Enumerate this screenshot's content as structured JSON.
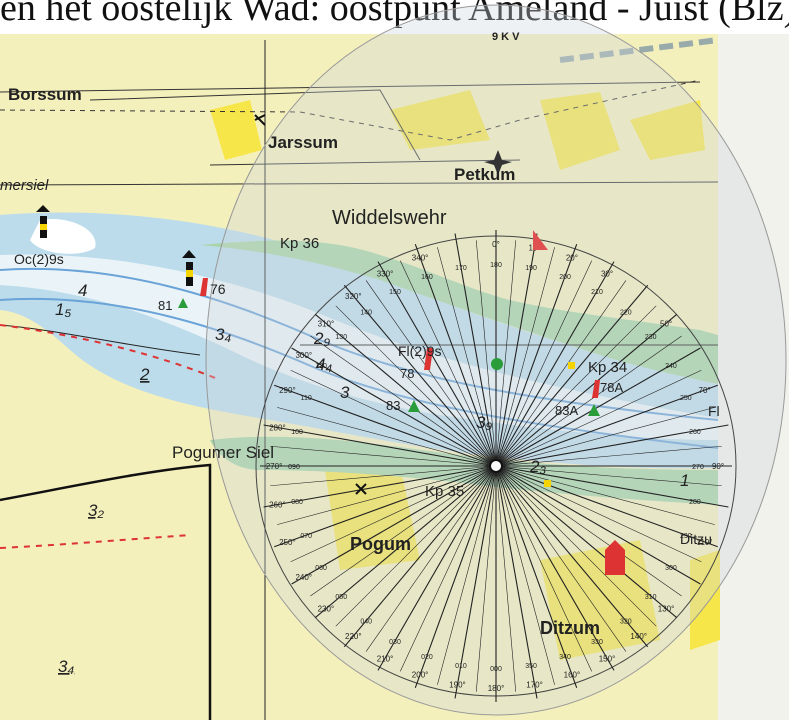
{
  "caption": "en het oostelijk Wad: oostpunt Ameland - Juist (Blz).",
  "map": {
    "places": [
      {
        "id": "borssum",
        "name": "Borssum"
      },
      {
        "id": "jarssum",
        "name": "Jarssum"
      },
      {
        "id": "petkum",
        "name": "Petkum"
      },
      {
        "id": "widdelswehr",
        "name": "Widdelswehr"
      },
      {
        "id": "pogumer-siel",
        "name": "Pogumer Siel"
      },
      {
        "id": "pogum",
        "name": "Pogum"
      },
      {
        "id": "ditzum",
        "name": "Ditzum"
      },
      {
        "id": "ditzum-right",
        "name": "Ditzu"
      },
      {
        "id": "mersiel",
        "name": "mersiel"
      }
    ],
    "kilometer_posts": [
      "Kp 36",
      "Kp 34",
      "Kp 35"
    ],
    "lights": [
      "Oc(2)9s",
      "Fl(2)9s",
      "Fl"
    ],
    "buoys": [
      "76",
      "81",
      "78",
      "83",
      "83A",
      "78A"
    ],
    "depths": [
      {
        "id": "d4a",
        "text": "4"
      },
      {
        "id": "d15",
        "text": "1₅"
      },
      {
        "id": "d34a",
        "text": "3₄"
      },
      {
        "id": "d2",
        "text": "2"
      },
      {
        "id": "d29",
        "text": "2₉"
      },
      {
        "id": "d44",
        "text": "4₄"
      },
      {
        "id": "d3",
        "text": "3"
      },
      {
        "id": "d39",
        "text": "3₉"
      },
      {
        "id": "d23",
        "text": "2₃"
      },
      {
        "id": "d1",
        "text": "1"
      },
      {
        "id": "d32",
        "text": "3₂"
      },
      {
        "id": "d34b",
        "text": "3₄"
      }
    ],
    "protractor": {
      "label": "9 K V",
      "degree_labels": [
        "0°",
        "10°",
        "20°",
        "30°",
        "50°",
        "70°",
        "90°",
        "110°",
        "130°",
        "140°",
        "150°",
        "160°",
        "170°",
        "180°",
        "190°",
        "200°",
        "210°",
        "220°",
        "230°",
        "240°",
        "250°",
        "260°",
        "270°",
        "280°",
        "290°",
        "300°",
        "310°",
        "320°",
        "330°",
        "340°"
      ],
      "inner_labels": [
        "180",
        "190",
        "200",
        "210",
        "220",
        "230",
        "240",
        "250",
        "260",
        "270",
        "280",
        "290",
        "300",
        "310",
        "320",
        "330",
        "340",
        "350",
        "000",
        "010",
        "020",
        "030",
        "040",
        "050",
        "060",
        "070",
        "080",
        "090",
        "100",
        "110",
        "120",
        "130",
        "140",
        "150",
        "160",
        "170"
      ]
    }
  },
  "colors": {
    "land": "#f4f0bc",
    "built_up": "#f7e64a",
    "shallow": "#bcdcec",
    "channel": "#eaf4f8",
    "marsh": "#a8d5a6",
    "overlay": "#cfd8dc"
  }
}
